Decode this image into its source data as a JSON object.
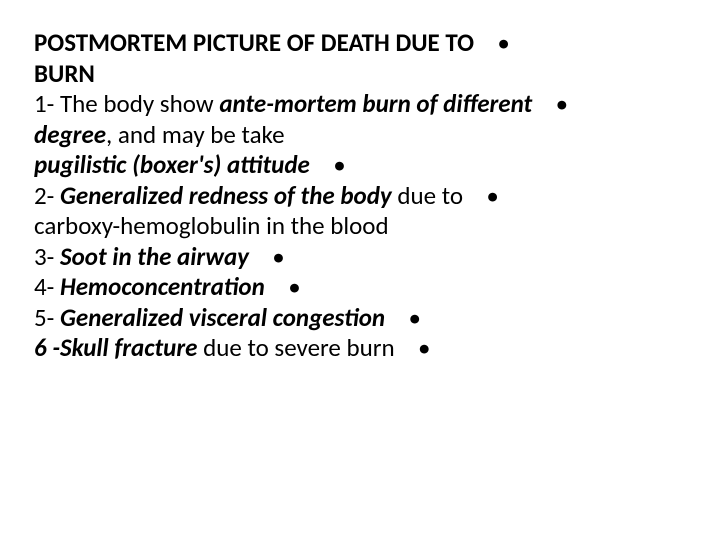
{
  "colors": {
    "text": "#000000",
    "bg": "#ffffff"
  },
  "font_size_pt": 25,
  "bullet_glyph": "•",
  "title": {
    "part1": "POSTMORTEM PICTURE OF DEATH DUE TO",
    "part2": "BURN"
  },
  "item1": {
    "pre": "1- The body show ",
    "bold_ital": "ante-mortem burn of different degree",
    "post": ", and may be take"
  },
  "item1b": {
    "bold_ital": "pugilistic (boxer's) attitude"
  },
  "item2": {
    "pre": "2- ",
    "bold_ital": "Generalized redness of the body",
    "post1": " due to",
    "post2": "carboxy-hemoglobulin in the blood"
  },
  "item3": {
    "pre": "3- ",
    "bold_ital": "Soot in the airway"
  },
  "item4": {
    "pre": "4- ",
    "bold_ital": "Hemoconcentration"
  },
  "item5": {
    "pre": "5- ",
    "bold_ital": "Generalized visceral congestion"
  },
  "item6": {
    "bold_ital": "6 -Skull fracture",
    "post": " due to severe burn"
  }
}
